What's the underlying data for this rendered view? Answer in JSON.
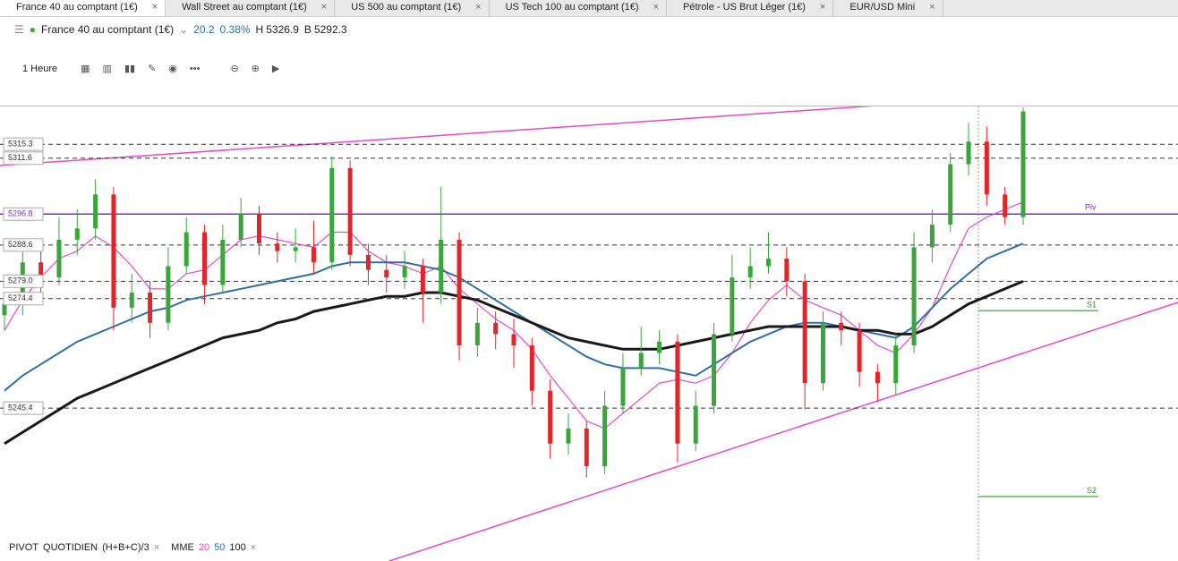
{
  "tabs": [
    "France 40 au comptant (1€)",
    "Wall Street au comptant (1€)",
    "US 500 au comptant (1€)",
    "US Tech 100 au comptant (1€)",
    "Pétrole - US Brut Léger (1€)",
    "EUR/USD Mini"
  ],
  "quote": {
    "instrument": "France 40 au comptant (1€)",
    "change": "20.2",
    "change_pct": "0.38%",
    "high_label": "H",
    "high": "5326.9",
    "low_label": "B",
    "low": "5292.3"
  },
  "toolbar": {
    "timeframe": "1 Heure"
  },
  "indicators": {
    "pivot": "PIVOT",
    "period": "QUOTIDIEN",
    "formula": "(H+B+C)/3",
    "mme": "MME",
    "p20": "20",
    "p50": "50",
    "p100": "100"
  },
  "chart_data": {
    "type": "candlestick",
    "ylim": [
      5204.9,
      5325.3
    ],
    "up_color": "#3aa53a",
    "down_color": "#e3252b",
    "levels": [
      {
        "value": 5315.3
      },
      {
        "value": 5311.6
      },
      {
        "value": 5296.8,
        "name": "Piv",
        "color": "#7b2fbf"
      },
      {
        "value": 5288.6
      },
      {
        "value": 5279,
        "label": "5279.0"
      },
      {
        "value": 5274.4
      },
      {
        "value": 5245.4
      }
    ],
    "supports": [
      {
        "name": "S1",
        "value": 5271.2
      },
      {
        "name": "S2",
        "value": 5222
      }
    ],
    "candles": [
      [
        5270,
        5276,
        5266,
        5273
      ],
      [
        5273,
        5287,
        5270,
        5284
      ],
      [
        5284,
        5288,
        5276,
        5280
      ],
      [
        5280,
        5296,
        5278,
        5290
      ],
      [
        5290,
        5298,
        5286,
        5293
      ],
      [
        5293,
        5306,
        5290,
        5302
      ],
      [
        5302,
        5304,
        5266,
        5272
      ],
      [
        5272,
        5281,
        5268,
        5276
      ],
      [
        5276,
        5279,
        5264,
        5268
      ],
      [
        5268,
        5288,
        5266,
        5283
      ],
      [
        5283,
        5296,
        5281,
        5292
      ],
      [
        5292,
        5294,
        5273,
        5278
      ],
      [
        5278,
        5294,
        5276,
        5290
      ],
      [
        5290,
        5301,
        5288,
        5297
      ],
      [
        5297,
        5299,
        5286,
        5289
      ],
      [
        5289,
        5292,
        5284,
        5287
      ],
      [
        5287,
        5293,
        5284,
        5288
      ],
      [
        5288,
        5295,
        5281,
        5284
      ],
      [
        5284,
        5312,
        5282,
        5309
      ],
      [
        5309,
        5311,
        5283,
        5286
      ],
      [
        5286,
        5289,
        5278,
        5282
      ],
      [
        5282,
        5286,
        5276,
        5280
      ],
      [
        5280,
        5287,
        5277,
        5283
      ],
      [
        5283,
        5285,
        5268,
        5276
      ],
      [
        5276,
        5304,
        5273,
        5290
      ],
      [
        5290,
        5292,
        5258,
        5262
      ],
      [
        5262,
        5272,
        5259,
        5268
      ],
      [
        5268,
        5271,
        5261,
        5265
      ],
      [
        5265,
        5269,
        5256,
        5262
      ],
      [
        5262,
        5264,
        5246,
        5250
      ],
      [
        5250,
        5253,
        5232,
        5236
      ],
      [
        5236,
        5244,
        5233,
        5240
      ],
      [
        5240,
        5242,
        5227,
        5230
      ],
      [
        5230,
        5250,
        5228,
        5246
      ],
      [
        5246,
        5260,
        5244,
        5256
      ],
      [
        5256,
        5267,
        5254,
        5260
      ],
      [
        5260,
        5266,
        5257,
        5263
      ],
      [
        5263,
        5265,
        5231,
        5236
      ],
      [
        5236,
        5250,
        5234,
        5246
      ],
      [
        5246,
        5268,
        5244,
        5265
      ],
      [
        5265,
        5286,
        5263,
        5280
      ],
      [
        5280,
        5288,
        5277,
        5283
      ],
      [
        5283,
        5292,
        5281,
        5285
      ],
      [
        5285,
        5288,
        5275,
        5279
      ],
      [
        5279,
        5281,
        5245,
        5252
      ],
      [
        5252,
        5271,
        5250,
        5268
      ],
      [
        5268,
        5271,
        5262,
        5266
      ],
      [
        5266,
        5268,
        5251,
        5255
      ],
      [
        5255,
        5257,
        5247,
        5252
      ],
      [
        5252,
        5265,
        5249,
        5262
      ],
      [
        5262,
        5292,
        5260,
        5288
      ],
      [
        5288,
        5298,
        5284,
        5294
      ],
      [
        5294,
        5313,
        5292,
        5310
      ],
      [
        5310,
        5321,
        5307,
        5316
      ],
      [
        5316,
        5320,
        5299,
        5302
      ],
      [
        5302,
        5304,
        5294,
        5296
      ],
      [
        5296,
        5325,
        5294,
        5324
      ]
    ],
    "series": [
      {
        "name": "20",
        "color": "#e64ac8",
        "values": [
          5266,
          5274,
          5280,
          5285,
          5287,
          5291,
          5288,
          5283,
          5277,
          5277,
          5281,
          5282,
          5286,
          5290,
          5291,
          5290,
          5289,
          5288,
          5292,
          5292,
          5287,
          5284,
          5283,
          5281,
          5283,
          5277,
          5273,
          5269,
          5266,
          5261,
          5254,
          5248,
          5242,
          5240,
          5244,
          5248,
          5252,
          5253,
          5252,
          5254,
          5260,
          5268,
          5274,
          5278,
          5274,
          5272,
          5270,
          5266,
          5262,
          5260,
          5265,
          5272,
          5283,
          5293,
          5296,
          5298,
          5300
        ]
      },
      {
        "name": "50",
        "color": "#2f6fa8",
        "values": [
          5250,
          5254,
          5257,
          5260,
          5263,
          5265,
          5267,
          5269,
          5271,
          5272,
          5274,
          5275,
          5276,
          5277,
          5278,
          5279,
          5280,
          5281,
          5283,
          5284,
          5284,
          5284,
          5284,
          5283,
          5282,
          5280,
          5277,
          5274,
          5271,
          5268,
          5265,
          5262,
          5259,
          5257,
          5256,
          5256,
          5256,
          5255,
          5254,
          5257,
          5260,
          5263,
          5265,
          5267,
          5268,
          5268,
          5267,
          5266,
          5265,
          5264,
          5267,
          5272,
          5277,
          5281,
          5285,
          5287,
          5289
        ]
      },
      {
        "name": "100",
        "color": "#1a1a1a",
        "values": [
          5236,
          5239,
          5242,
          5245,
          5248,
          5250,
          5252,
          5254,
          5256,
          5258,
          5260,
          5262,
          5264,
          5265,
          5266,
          5268,
          5269,
          5271,
          5272,
          5273,
          5274,
          5275,
          5275,
          5276,
          5276,
          5275,
          5274,
          5272,
          5270,
          5268,
          5266,
          5264,
          5263,
          5262,
          5261,
          5261,
          5261,
          5262,
          5263,
          5264,
          5265,
          5266,
          5267,
          5267,
          5267,
          5267,
          5267,
          5266,
          5266,
          5265,
          5265,
          5267,
          5270,
          5273,
          5275,
          5277,
          5279
        ]
      }
    ]
  }
}
